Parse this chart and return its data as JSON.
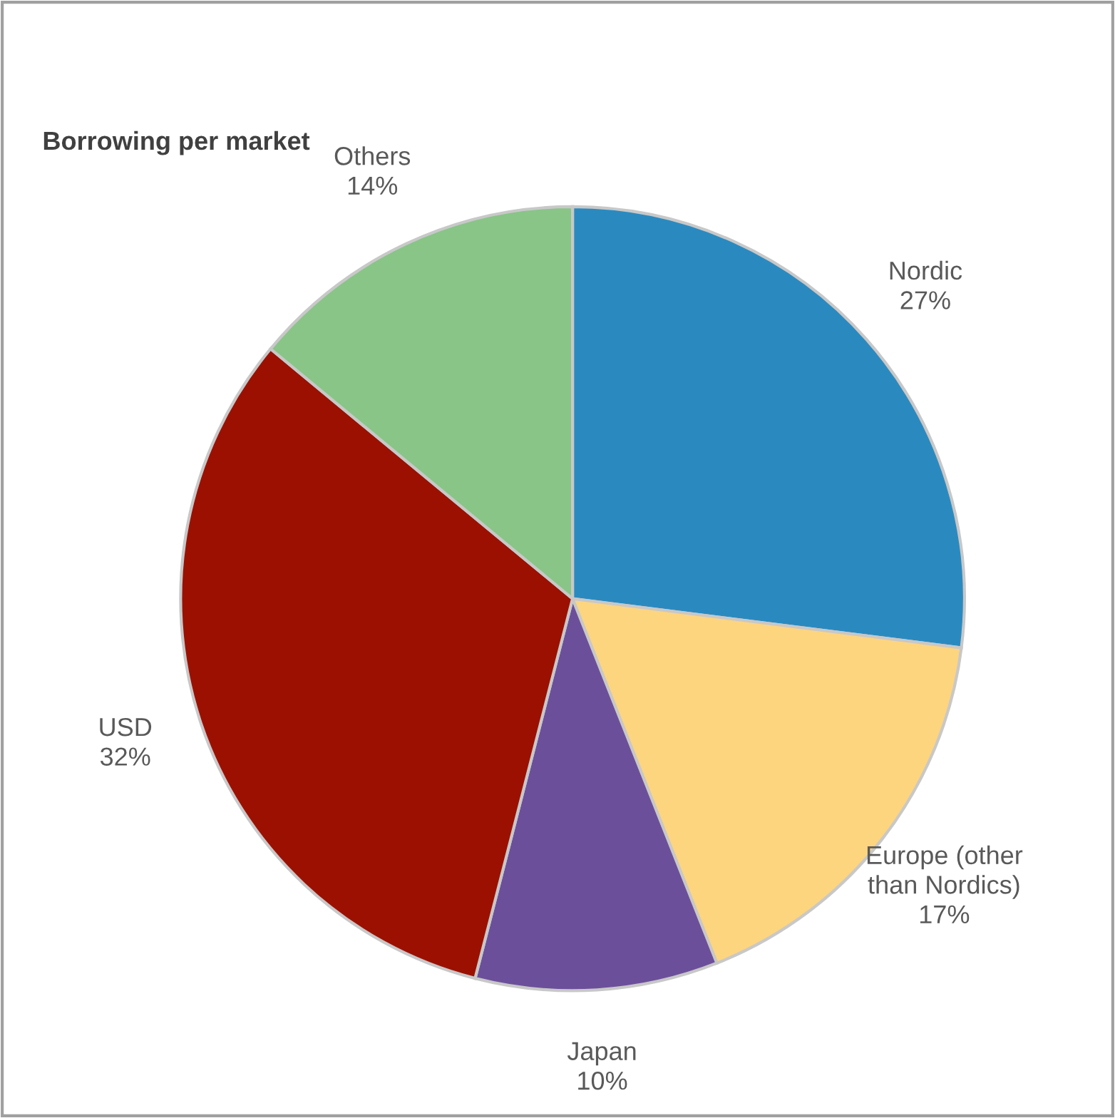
{
  "chart_data": {
    "type": "pie",
    "title": "Borrowing per market",
    "categories": [
      "Nordic",
      "Europe (other\nthan Nordics)",
      "Japan",
      "USD",
      "Others"
    ],
    "values": [
      27,
      17,
      10,
      32,
      14
    ],
    "value_labels": [
      "27%",
      "17%",
      "10%",
      "32%",
      "14%"
    ],
    "colors": [
      "#2a8ac0",
      "#fdd57f",
      "#6c4f9b",
      "#9b1000",
      "#88c587"
    ],
    "legend": false
  }
}
